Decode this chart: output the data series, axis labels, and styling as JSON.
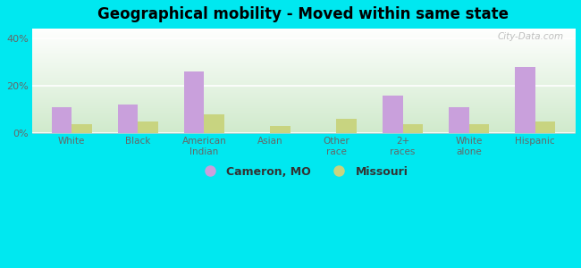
{
  "title": "Geographical mobility - Moved within same state",
  "categories": [
    "White",
    "Black",
    "American\nIndian",
    "Asian",
    "Other\nrace",
    "2+\nraces",
    "White\nalone",
    "Hispanic"
  ],
  "cameron_values": [
    11,
    12,
    26,
    0,
    0,
    16,
    11,
    28
  ],
  "missouri_values": [
    4,
    5,
    8,
    3,
    6,
    4,
    4,
    5
  ],
  "cameron_color": "#c9a0dc",
  "missouri_color": "#c8d480",
  "background_color": "#00e8f0",
  "plot_bg_top_left": "#eaf5e8",
  "plot_bg_top_right": "#ffffff",
  "plot_bg_bottom": "#d0eacc",
  "yticks": [
    0,
    20,
    40
  ],
  "ytick_labels": [
    "0%",
    "20%",
    "40%"
  ],
  "ylim": [
    0,
    44
  ],
  "legend_cameron": "Cameron, MO",
  "legend_missouri": "Missouri",
  "bar_width": 0.3,
  "watermark": "City-Data.com"
}
